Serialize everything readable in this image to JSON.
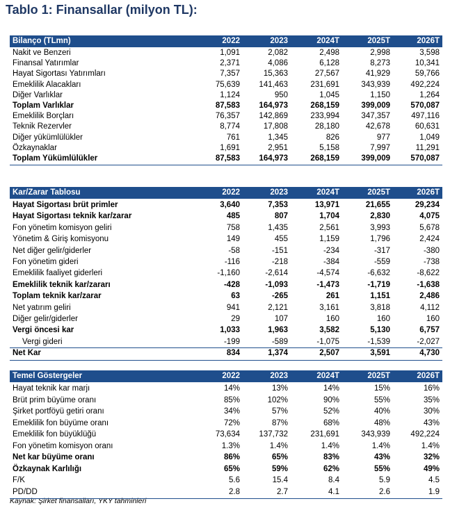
{
  "title": "Tablo 1: Finansallar (milyon TL):",
  "tables": [
    {
      "header": [
        "Bilanço (TLmn)",
        "2022",
        "2023",
        "2024T",
        "2025T",
        "2026T"
      ],
      "rows": [
        {
          "cells": [
            "Nakit ve Benzeri",
            "1,091",
            "2,082",
            "2,498",
            "2,998",
            "3,598"
          ]
        },
        {
          "cells": [
            "Finansal Yatırımlar",
            "2,371",
            "4,086",
            "6,128",
            "8,273",
            "10,341"
          ]
        },
        {
          "cells": [
            "Hayat Sigortası Yatırımları",
            "7,357",
            "15,363",
            "27,567",
            "41,929",
            "59,766"
          ]
        },
        {
          "cells": [
            "Emeklilik Alacakları",
            "75,639",
            "141,463",
            "231,691",
            "343,939",
            "492,224"
          ]
        },
        {
          "cells": [
            "Diğer Varlıklar",
            "1,124",
            "950",
            "1,045",
            "1,150",
            "1,264"
          ]
        },
        {
          "cells": [
            "Toplam Varlıklar",
            "87,583",
            "164,973",
            "268,159",
            "399,009",
            "570,087"
          ],
          "bold": true
        },
        {
          "cells": [
            "Emeklilik Borçları",
            "76,357",
            "142,869",
            "233,994",
            "347,357",
            "497,116"
          ]
        },
        {
          "cells": [
            "Teknik Rezervler",
            "8,774",
            "17,808",
            "28,180",
            "42,678",
            "60,631"
          ]
        },
        {
          "cells": [
            "Diğer yükümlülükler",
            "761",
            "1,345",
            "826",
            "977",
            "1,049"
          ]
        },
        {
          "cells": [
            "Özkaynaklar",
            "1,691",
            "2,951",
            "5,158",
            "7,997",
            "11,291"
          ]
        },
        {
          "cells": [
            "Toplam Yükümlülükler",
            "87,583",
            "164,973",
            "268,159",
            "399,009",
            "570,087"
          ],
          "bold": true
        }
      ]
    },
    {
      "header": [
        "Kar/Zarar Tablosu",
        "2022",
        "2023",
        "2024T",
        "2025T",
        "2026T"
      ],
      "rows": [
        {
          "cells": [
            "Hayat Sigortası brüt primler",
            "3,640",
            "7,353",
            "13,971",
            "21,655",
            "29,234"
          ],
          "bold": true
        },
        {
          "cells": [
            "Hayat Sigortası teknik kar/zarar",
            "485",
            "807",
            "1,704",
            "2,830",
            "4,075"
          ],
          "bold": true
        },
        {
          "cells": [
            "Fon yönetim komisyon geliri",
            "758",
            "1,435",
            "2,561",
            "3,993",
            "5,678"
          ]
        },
        {
          "cells": [
            "Yönetim & Giriş komisyonu",
            "149",
            "455",
            "1,159",
            "1,796",
            "2,424"
          ]
        },
        {
          "cells": [
            "Net diğer gelir/giderler",
            "-58",
            "-151",
            "-234",
            "-317",
            "-380"
          ]
        },
        {
          "cells": [
            "Fon yönetim gideri",
            "-116",
            "-218",
            "-384",
            "-559",
            "-738"
          ]
        },
        {
          "cells": [
            "Emeklilik faaliyet giderleri",
            "-1,160",
            "-2,614",
            "-4,574",
            "-6,632",
            "-8,622"
          ]
        },
        {
          "cells": [
            "Emeklilik teknik kar/zararı",
            "-428",
            "-1,093",
            "-1,473",
            "-1,719",
            "-1,638"
          ],
          "bold": true
        },
        {
          "cells": [
            "Toplam teknik kar/zarar",
            "63",
            "-265",
            "261",
            "1,151",
            "2,486"
          ],
          "bold": true
        },
        {
          "cells": [
            "Net yatırım geliri",
            "941",
            "2,121",
            "3,161",
            "3,818",
            "4,112"
          ]
        },
        {
          "cells": [
            "Diğer gelir/giderler",
            "29",
            "107",
            "160",
            "160",
            "160"
          ]
        },
        {
          "cells": [
            "Vergi öncesi kar",
            "1,033",
            "1,963",
            "3,582",
            "5,130",
            "6,757"
          ],
          "bold": true
        },
        {
          "cells": [
            "Vergi gideri",
            "-199",
            "-589",
            "-1,075",
            "-1,539",
            "-2,027"
          ],
          "indent": true
        },
        {
          "cells": [
            "Net Kar",
            "834",
            "1,374",
            "2,507",
            "3,591",
            "4,730"
          ],
          "bold": true
        }
      ]
    },
    {
      "header": [
        "Temel Göstergeler",
        "2022",
        "2023",
        "2024T",
        "2025T",
        "2026T"
      ],
      "rows": [
        {
          "cells": [
            "Hayat teknik kar marjı",
            "14%",
            "13%",
            "14%",
            "15%",
            "16%"
          ]
        },
        {
          "cells": [
            "Brüt prim büyüme oranı",
            "85%",
            "102%",
            "90%",
            "55%",
            "35%"
          ]
        },
        {
          "cells": [
            "Şirket portföyü getiri oranı",
            "34%",
            "57%",
            "52%",
            "40%",
            "30%"
          ]
        },
        {
          "cells": [
            "Emeklilik fon büyüme oranı",
            "72%",
            "87%",
            "68%",
            "48%",
            "43%"
          ]
        },
        {
          "cells": [
            "Emeklilik fon büyüklüğü",
            "73,634",
            "137,732",
            "231,691",
            "343,939",
            "492,224"
          ]
        },
        {
          "cells": [
            "Fon yönetim komisyon oranı",
            "1.3%",
            "1.4%",
            "1.4%",
            "1.4%",
            "1.4%"
          ]
        },
        {
          "cells": [
            "Net kar büyüme oranı",
            "86%",
            "65%",
            "83%",
            "43%",
            "32%"
          ],
          "bold": true
        },
        {
          "cells": [
            "Özkaynak Karlılığı",
            "65%",
            "59%",
            "62%",
            "55%",
            "49%"
          ],
          "bold": true
        },
        {
          "cells": [
            "F/K",
            "5.6",
            "15.4",
            "8.4",
            "5.9",
            "4.5"
          ]
        },
        {
          "cells": [
            "PD/DD",
            "2.8",
            "2.7",
            "4.1",
            "2.6",
            "1.9"
          ]
        }
      ]
    }
  ],
  "source": "Kaynak: Şirket finansalları, YKY tahminleri"
}
